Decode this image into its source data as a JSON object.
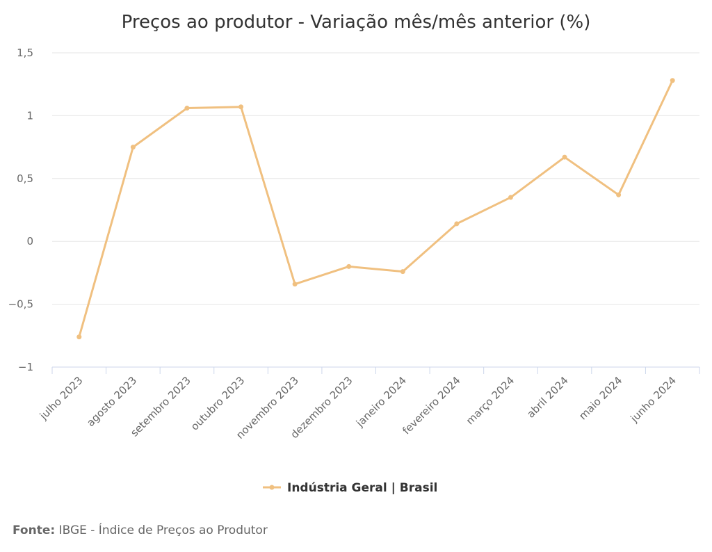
{
  "chart_data": {
    "type": "line",
    "title": "Preços ao produtor - Variação mês/mês anterior (%)",
    "xlabel": "",
    "ylabel": "",
    "categories": [
      "julho 2023",
      "agosto 2023",
      "setembro 2023",
      "outubro 2023",
      "novembro 2023",
      "dezembro 2023",
      "janeiro 2024",
      "fevereiro 2024",
      "março 2024",
      "abril 2024",
      "maio 2024",
      "junho 2024"
    ],
    "series": [
      {
        "name": "Indústria Geral | Brasil",
        "color": "#f0c080",
        "values": [
          -0.76,
          0.75,
          1.06,
          1.07,
          -0.34,
          -0.2,
          -0.24,
          0.14,
          0.35,
          0.67,
          0.37,
          1.28
        ]
      }
    ],
    "ylim": [
      -1,
      1.5
    ],
    "yticks": [
      -1,
      -0.5,
      0,
      0.5,
      1,
      1.5
    ],
    "ytick_labels": [
      "−1",
      "−0,5",
      "0",
      "0,5",
      "1",
      "1,5"
    ],
    "grid": true,
    "legend_position": "bottom-center"
  },
  "source": {
    "label": "Fonte:",
    "text": "IBGE - Índice de Preços ao Produtor"
  }
}
